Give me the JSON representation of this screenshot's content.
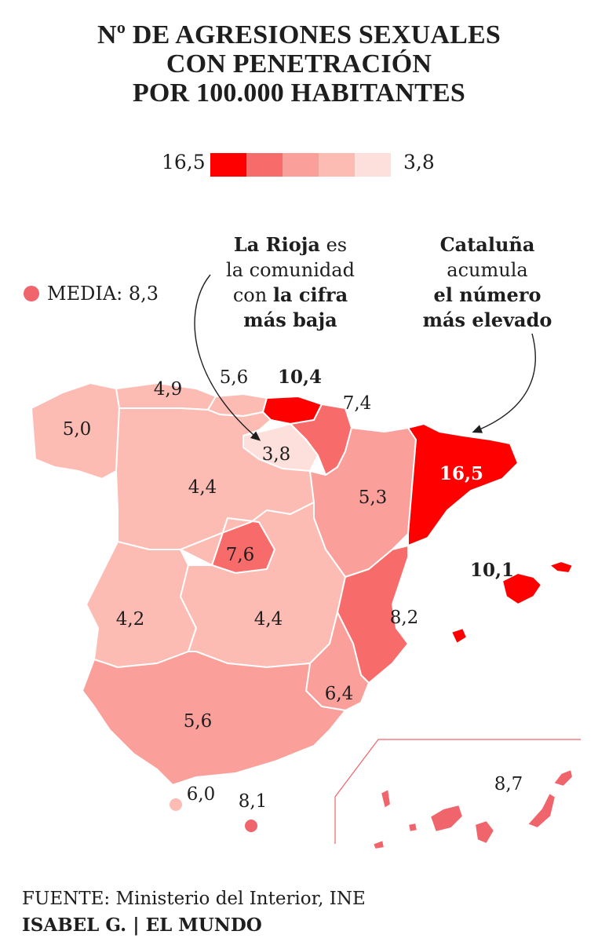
{
  "title": {
    "line1": "Nº DE AGRESIONES SEXUALES",
    "line2": "CON PENETRACIÓN",
    "line3": "POR 100.000 HABITANTES"
  },
  "legend": {
    "max": "16,5",
    "min": "3,8",
    "colors": [
      "#fe0000",
      "#f86b6b",
      "#fb9f9a",
      "#fcbcb4",
      "#fde0dc"
    ]
  },
  "media": {
    "label": "MEDIA: 8,3",
    "color": "#f0646b"
  },
  "annotations": {
    "rioja": {
      "bold1": "La Rioja",
      "t1": " es",
      "t2": "la comunidad",
      "t3": "con ",
      "bold3": "la cifra",
      "bold4": "más baja"
    },
    "cataluna": {
      "bold1": "Cataluña",
      "t2": "acumula",
      "bold3": "el número",
      "bold4": "más elevado"
    }
  },
  "regions": [
    {
      "name": "Galicia",
      "value": "5,0",
      "color": "#fcbcb4",
      "bold": false
    },
    {
      "name": "Asturias",
      "value": "4,9",
      "color": "#fcbcb4",
      "bold": false
    },
    {
      "name": "Cantabria",
      "value": "5,6",
      "color": "#fcbcb4",
      "bold": false
    },
    {
      "name": "País Vasco",
      "value": "10,4",
      "color": "#fe0000",
      "bold": true
    },
    {
      "name": "Navarra",
      "value": "7,4",
      "color": "#f86b6b",
      "bold": false
    },
    {
      "name": "La Rioja",
      "value": "3,8",
      "color": "#fde0dc",
      "bold": false
    },
    {
      "name": "Castilla y León",
      "value": "4,4",
      "color": "#fcbcb4",
      "bold": false
    },
    {
      "name": "Aragón",
      "value": "5,3",
      "color": "#fb9f9a",
      "bold": false
    },
    {
      "name": "Cataluña",
      "value": "16,5",
      "color": "#fe0000",
      "bold": true,
      "white": true
    },
    {
      "name": "Madrid",
      "value": "7,6",
      "color": "#f86b6b",
      "bold": false
    },
    {
      "name": "Extremadura",
      "value": "4,2",
      "color": "#fcbcb4",
      "bold": false
    },
    {
      "name": "Castilla-La Mancha",
      "value": "4,4",
      "color": "#fcbcb4",
      "bold": false
    },
    {
      "name": "C. Valenciana",
      "value": "8,2",
      "color": "#f86b6b",
      "bold": false
    },
    {
      "name": "Murcia",
      "value": "6,4",
      "color": "#fb9f9a",
      "bold": false
    },
    {
      "name": "Andalucía",
      "value": "5,6",
      "color": "#fb9f9a",
      "bold": false
    },
    {
      "name": "Baleares",
      "value": "10,1",
      "color": "#fe0000",
      "bold": true
    },
    {
      "name": "Ceuta",
      "value": "6,0",
      "color": "#fcbcb4",
      "bold": false
    },
    {
      "name": "Melilla",
      "value": "8,1",
      "color": "#f0646b",
      "bold": false
    },
    {
      "name": "Canarias",
      "value": "8,7",
      "color": "#f0646b",
      "bold": false
    }
  ],
  "footer": {
    "source": "FUENTE: Ministerio del Interior, INE",
    "credit": "ISABEL G. | EL MUNDO"
  }
}
